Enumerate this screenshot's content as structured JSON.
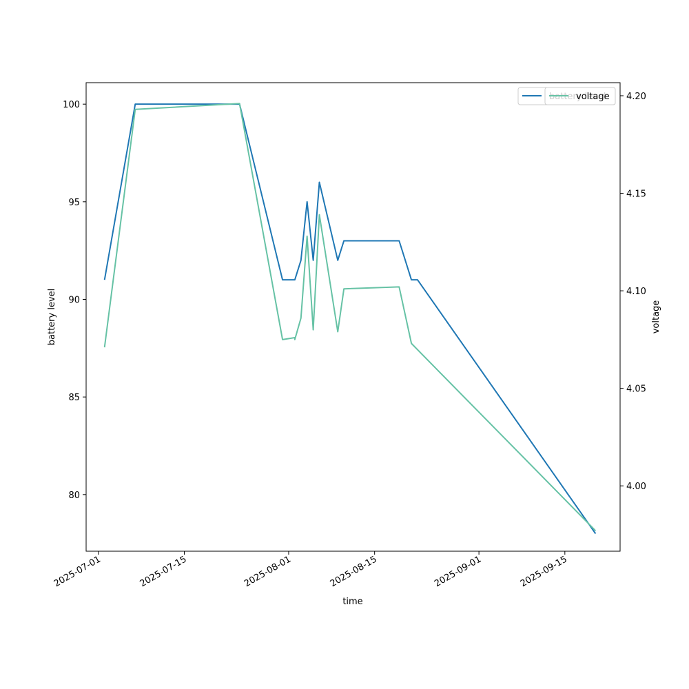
{
  "chart_data": {
    "type": "line",
    "xlabel": "time",
    "ylabel": "battery level",
    "ylabel_right": "voltage",
    "xlim": [
      "2025-06-29",
      "2025-09-24"
    ],
    "ylim": [
      77.1,
      101.1
    ],
    "ylim_right": [
      3.9665,
      4.2067
    ],
    "x_ticks": [
      "2025-07-01",
      "2025-07-15",
      "2025-08-01",
      "2025-08-15",
      "2025-09-01",
      "2025-09-15"
    ],
    "y_ticks": [
      80,
      85,
      90,
      95,
      100
    ],
    "y_ticks_right": [
      4.0,
      4.05,
      4.1,
      4.15,
      4.2
    ],
    "y_ticks_right_labels": [
      "4.00",
      "4.05",
      "4.10",
      "4.15",
      "4.20"
    ],
    "grid": false,
    "series": [
      {
        "name": "battery level",
        "axis": "left",
        "color": "#1f77b4",
        "points": [
          [
            "2025-07-02",
            91
          ],
          [
            "2025-07-07",
            100
          ],
          [
            "2025-07-24",
            100
          ],
          [
            "2025-07-31",
            91
          ],
          [
            "2025-08-02",
            91
          ],
          [
            "2025-08-03",
            92
          ],
          [
            "2025-08-04",
            95
          ],
          [
            "2025-08-05",
            92
          ],
          [
            "2025-08-06",
            96
          ],
          [
            "2025-08-09",
            92
          ],
          [
            "2025-08-10",
            93
          ],
          [
            "2025-08-19",
            93
          ],
          [
            "2025-08-21",
            91
          ],
          [
            "2025-08-22",
            91
          ],
          [
            "2025-09-20",
            78
          ]
        ]
      },
      {
        "name": "voltage",
        "axis": "right",
        "color": "#66c2a5",
        "points": [
          [
            "2025-07-02",
            4.071
          ],
          [
            "2025-07-07",
            4.193
          ],
          [
            "2025-07-24",
            4.196
          ],
          [
            "2025-07-31",
            4.075
          ],
          [
            "2025-08-02",
            4.076
          ],
          [
            "2025-08-02",
            4.075
          ],
          [
            "2025-08-03",
            4.086
          ],
          [
            "2025-08-04",
            4.128
          ],
          [
            "2025-08-05",
            4.08
          ],
          [
            "2025-08-06",
            4.139
          ],
          [
            "2025-08-09",
            4.079
          ],
          [
            "2025-08-10",
            4.101
          ],
          [
            "2025-08-19",
            4.102
          ],
          [
            "2025-08-21",
            4.073
          ],
          [
            "2025-09-20",
            3.977
          ]
        ]
      }
    ],
    "legends": [
      {
        "axis": "left",
        "placement": "upper-right",
        "entries": [
          "battery level"
        ]
      },
      {
        "axis": "right",
        "placement": "upper-right",
        "entries": [
          "voltage"
        ]
      }
    ]
  }
}
